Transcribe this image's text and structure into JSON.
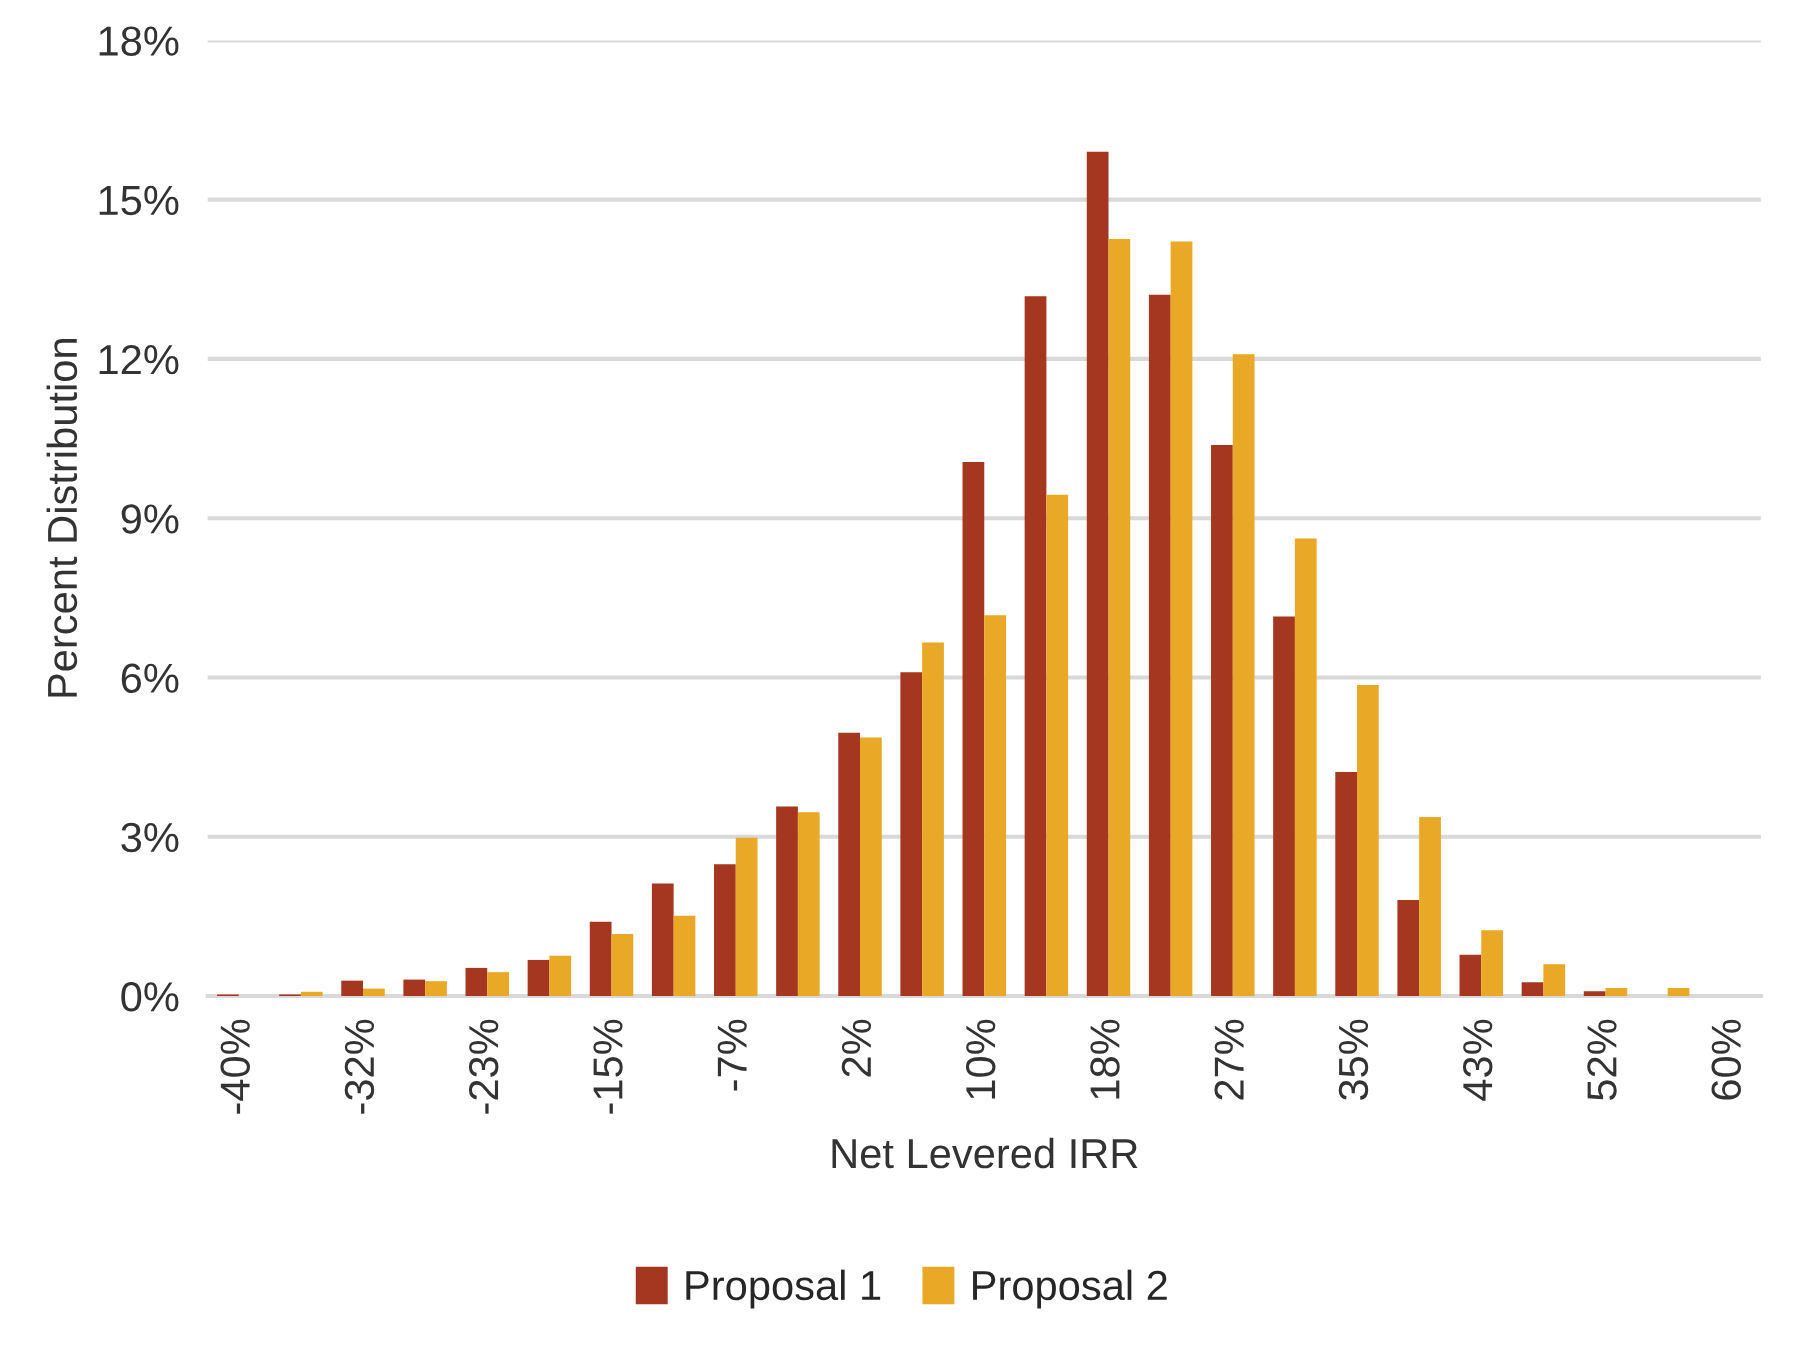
{
  "chart_data": {
    "type": "bar",
    "xlabel": "Net Levered IRR",
    "ylabel": "Percent Distribution",
    "categories": [
      "-40%",
      null,
      "-32%",
      null,
      "-23%",
      null,
      "-15%",
      null,
      "-7%",
      null,
      "2%",
      null,
      "10%",
      null,
      "18%",
      null,
      "27%",
      null,
      "35%",
      null,
      "43%",
      null,
      "52%",
      null,
      "60%"
    ],
    "series": [
      {
        "name": "Proposal 1",
        "color": "#a5361f",
        "values": [
          0.03,
          0.03,
          0.29,
          0.31,
          0.53,
          0.68,
          1.4,
          2.12,
          2.48,
          3.57,
          4.96,
          6.1,
          10.06,
          13.18,
          15.9,
          13.21,
          10.38,
          7.15,
          4.22,
          1.81,
          0.78,
          0.26,
          0.09,
          null,
          null
        ]
      },
      {
        "name": "Proposal 2",
        "color": "#e9a825",
        "values": [
          null,
          0.08,
          0.14,
          0.28,
          0.45,
          0.76,
          1.17,
          1.51,
          2.98,
          3.46,
          4.87,
          6.66,
          7.17,
          9.44,
          14.26,
          14.21,
          12.09,
          8.62,
          5.86,
          3.37,
          1.24,
          0.6,
          0.15,
          0.15,
          null
        ]
      }
    ],
    "ylim": [
      0,
      18
    ],
    "yticks": [
      {
        "value": 0,
        "label": "0%"
      },
      {
        "value": 3,
        "label": "3%"
      },
      {
        "value": 6,
        "label": "6%"
      },
      {
        "value": 9,
        "label": "9%"
      },
      {
        "value": 12,
        "label": "12%"
      },
      {
        "value": 15,
        "label": "15%"
      },
      {
        "value": 18,
        "label": "18%"
      }
    ],
    "grid": "y",
    "legend": "bottom"
  }
}
